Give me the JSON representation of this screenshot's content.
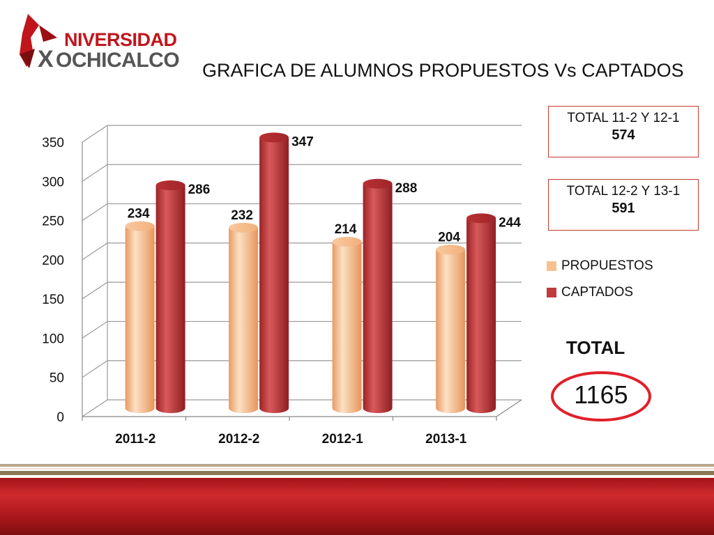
{
  "logo": {
    "brand_line1": "NIVERSIDAD",
    "brand_line2_x": "X",
    "brand_line2": "OCHICALCO"
  },
  "slide": {
    "title": "GRAFICA DE ALUMNOS PROPUESTOS Vs CAPTADOS"
  },
  "summary_boxes": [
    {
      "label": "TOTAL 11-2 Y 12-1",
      "value": "574"
    },
    {
      "label": "TOTAL 12-2 Y 13-1",
      "value": "591"
    }
  ],
  "grand_total": {
    "label": "TOTAL",
    "value": "1165"
  },
  "chart_data": {
    "type": "bar",
    "categories": [
      "2011-2",
      "2012-2",
      "2012-1",
      "2013-1"
    ],
    "series": [
      {
        "name": "PROPUESTOS",
        "values": [
          234,
          232,
          214,
          204
        ],
        "color": "#f5b98a"
      },
      {
        "name": "CAPTADOS",
        "values": [
          286,
          347,
          288,
          244
        ],
        "color": "#c0393d"
      }
    ],
    "ylim": [
      0,
      350
    ],
    "yticks": [
      0,
      50,
      100,
      150,
      200,
      250,
      300,
      350
    ],
    "grid": true,
    "legend_position": "right",
    "style": "3d-cylinder"
  },
  "colors": {
    "accent": "#c0151b",
    "band_dark": "#8f0f12",
    "band_tan": "#b8a88a"
  }
}
